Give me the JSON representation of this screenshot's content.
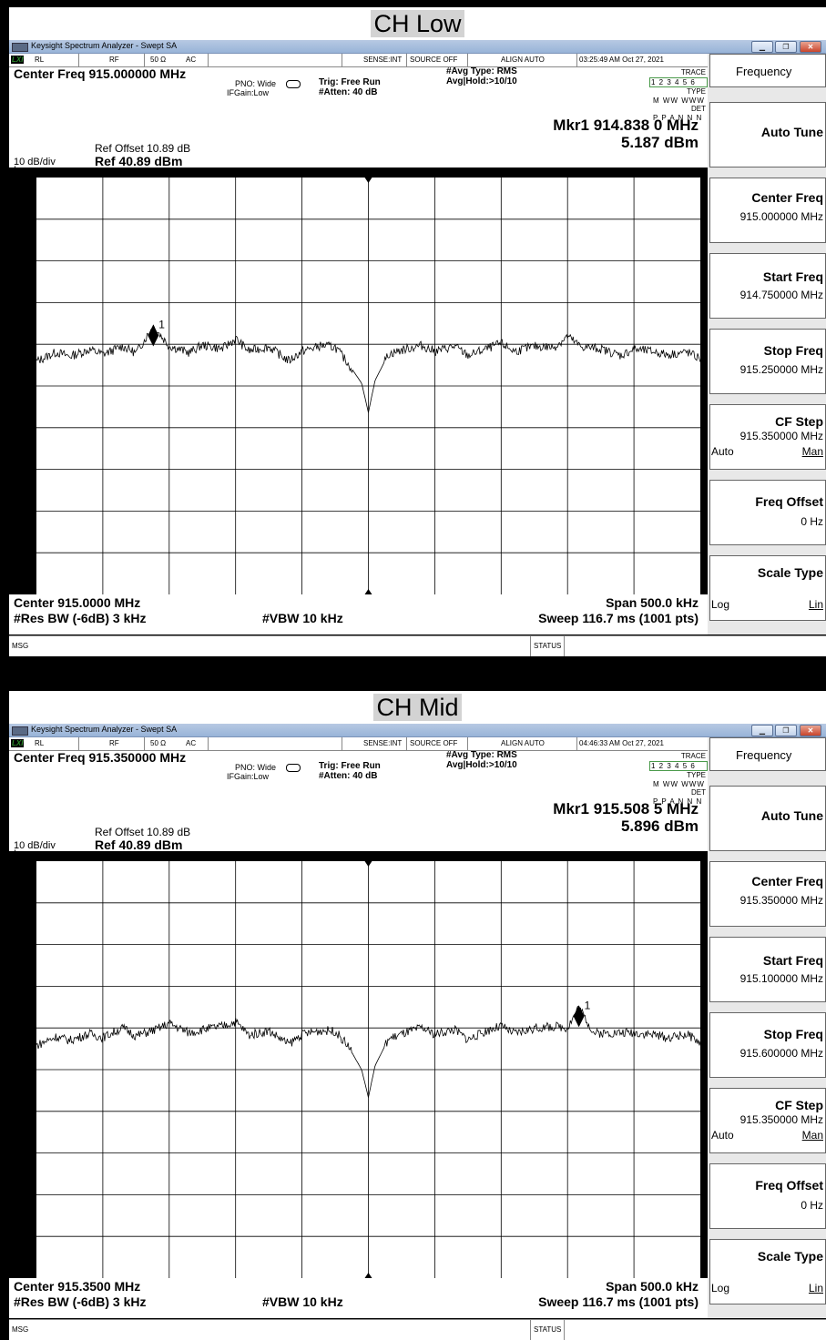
{
  "app": {
    "window_title": "Keysight Spectrum Analyzer - Swept SA",
    "logo": "LXI",
    "window_buttons": [
      "minimize-icon",
      "maximize-icon",
      "close-icon"
    ]
  },
  "status_labels": {
    "rl": "RL",
    "rf": "RF",
    "ohms": "50 Ω",
    "ac": "AC",
    "sense": "SENSE:INT",
    "source": "SOURCE OFF",
    "align": "ALIGN AUTO",
    "trace_label": "TRACE",
    "type_label": "TYPE",
    "det_label": "DET",
    "trace_value": "1 2 3 4 5 6",
    "type_value": "M WW WWW",
    "det_value": "P P A N N N"
  },
  "params": {
    "pno": "PNO: Wide",
    "ifgain": "IFGain:Low",
    "trig": "Trig: Free Run",
    "atten": "#Atten: 40 dB",
    "avg_type": "#Avg Type: RMS",
    "avg_hold": "Avg|Hold:>10/10",
    "scale_div": "10 dB/div",
    "log": "Log",
    "ref_offset": "Ref Offset 10.89 dB",
    "ref_level": "Ref 40.89 dBm",
    "vbw": "#VBW 10 kHz",
    "rbw": "#Res BW (-6dB) 3 kHz",
    "span": "Span 500.0 kHz",
    "sweep": "Sweep  116.7 ms (1001 pts)",
    "msg": "MSG",
    "status": "STATUS"
  },
  "y_ticks": [
    "30.9",
    "20.9",
    "10.9",
    "0.890",
    "-9.11",
    "-19.1",
    "-29.1",
    "-39.1",
    "-49.1"
  ],
  "softkeys": {
    "menu_title": "Frequency",
    "auto_tune": "Auto Tune",
    "center_freq": "Center Freq",
    "start_freq": "Start Freq",
    "stop_freq": "Stop Freq",
    "cf_step": "CF Step",
    "auto": "Auto",
    "man": "Man",
    "freq_offset": "Freq Offset",
    "freq_offset_val": "0 Hz",
    "scale_type": "Scale Type",
    "log": "Log",
    "lin": "Lin"
  },
  "screens": [
    {
      "section_title": "CH Low",
      "timestamp": "03:25:49 AM Oct 27, 2021",
      "center_freq_header": "Center Freq 915.000000 MHz",
      "marker_freq": "Mkr1 914.838 0 MHz",
      "marker_amp": "5.187 dBm",
      "marker_label": "1",
      "center_bottom": "Center 915.0000 MHz",
      "sk_center_val": "915.000000 MHz",
      "sk_start_val": "914.750000 MHz",
      "sk_stop_val": "915.250000 MHz",
      "sk_cfstep_val": "915.350000 MHz",
      "chart_data": {
        "type": "line",
        "title": "",
        "xlabel": "",
        "ylabel": "",
        "x_unit": "MHz",
        "y_unit": "dBm",
        "xlim": [
          914.75,
          915.25
        ],
        "ylim": [
          -59.11,
          40.89
        ],
        "series": [
          {
            "x": [
              914.75,
              914.765,
              914.775,
              914.79,
              914.8,
              914.815,
              914.825,
              914.838,
              914.85,
              914.865,
              914.875,
              914.89,
              914.9,
              914.91,
              914.925,
              914.94,
              914.95,
              914.965,
              914.975,
              914.985,
              914.995,
              915.0,
              915.005,
              915.015,
              915.025,
              915.04,
              915.05,
              915.065,
              915.075,
              915.09,
              915.1,
              915.11,
              915.125,
              915.14,
              915.15,
              915.16,
              915.175,
              915.19,
              915.2,
              915.215,
              915.225,
              915.24,
              915.25
            ],
            "y": [
              -3.2,
              -1.0,
              -2.0,
              -0.4,
              -1.5,
              0.4,
              -1.2,
              5.187,
              0.5,
              -1.1,
              0.7,
              -0.2,
              2.2,
              -0.7,
              0.3,
              -3.1,
              -0.8,
              0.6,
              0.2,
              -3.8,
              -8.5,
              -15.5,
              -7.8,
              -1.5,
              -0.5,
              0.6,
              -0.8,
              0.4,
              -1.8,
              -0.1,
              1.1,
              -0.8,
              0.4,
              0.2,
              2.8,
              0.3,
              -0.2,
              -1.8,
              -0.3,
              -0.9,
              -1.6,
              -1.0,
              -2.6
            ]
          }
        ],
        "marker": {
          "x": 914.838,
          "y": 5.187,
          "label": "1"
        }
      }
    },
    {
      "section_title": "CH Mid",
      "timestamp": "04:46:33 AM Oct 27, 2021",
      "center_freq_header": "Center Freq 915.350000 MHz",
      "marker_freq": "Mkr1 915.508 5 MHz",
      "marker_amp": "5.896 dBm",
      "marker_label": "1",
      "center_bottom": "Center 915.3500 MHz",
      "sk_center_val": "915.350000 MHz",
      "sk_start_val": "915.100000 MHz",
      "sk_stop_val": "915.600000 MHz",
      "sk_cfstep_val": "915.350000 MHz",
      "chart_data": {
        "type": "line",
        "title": "",
        "xlabel": "",
        "ylabel": "",
        "x_unit": "MHz",
        "y_unit": "dBm",
        "xlim": [
          915.1,
          915.6
        ],
        "ylim": [
          -59.11,
          40.89
        ],
        "series": [
          {
            "x": [
              915.1,
              915.115,
              915.125,
              915.14,
              915.15,
              915.165,
              915.175,
              915.19,
              915.2,
              915.215,
              915.225,
              915.24,
              915.25,
              915.26,
              915.275,
              915.29,
              915.3,
              915.315,
              915.325,
              915.335,
              915.345,
              915.35,
              915.355,
              915.365,
              915.375,
              915.39,
              915.4,
              915.415,
              915.425,
              915.44,
              915.45,
              915.46,
              915.475,
              915.49,
              915.5,
              915.5085,
              915.52,
              915.535,
              915.55,
              915.565,
              915.575,
              915.59,
              915.6
            ],
            "y": [
              -3.3,
              -1.2,
              -2.1,
              -0.5,
              -1.4,
              0.9,
              -1.0,
              0.5,
              2.0,
              -0.3,
              0.5,
              1.3,
              2.4,
              -0.8,
              0.2,
              -3.0,
              -0.6,
              0.3,
              0.1,
              -3.5,
              -9.2,
              -15.8,
              -8.2,
              -1.8,
              -0.6,
              0.9,
              -0.6,
              0.5,
              -1.9,
              0.3,
              1.3,
              -0.5,
              0.8,
              1.2,
              1.0,
              5.896,
              -0.4,
              -0.3,
              -0.2,
              -0.7,
              -1.5,
              -0.6,
              -2.7
            ]
          }
        ],
        "marker": {
          "x": 915.5085,
          "y": 5.896,
          "label": "1"
        }
      }
    }
  ]
}
